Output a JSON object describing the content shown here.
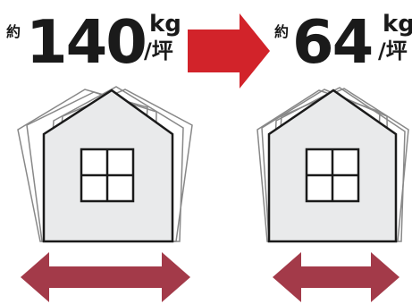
{
  "left_panel": {
    "prefix": "約",
    "number": "140",
    "unit_top": "kg",
    "unit_bottom": "/坪"
  },
  "right_panel": {
    "prefix": "約",
    "number": "64",
    "unit_top": "kg",
    "unit_bottom": "/坪"
  },
  "colors": {
    "transition_arrow": "#d2232a",
    "width_arrow": "#a33a49",
    "house_fill": "#e9eaeb",
    "house_outline": "#1a1a1a",
    "house_ghost_outline": "#888888"
  }
}
